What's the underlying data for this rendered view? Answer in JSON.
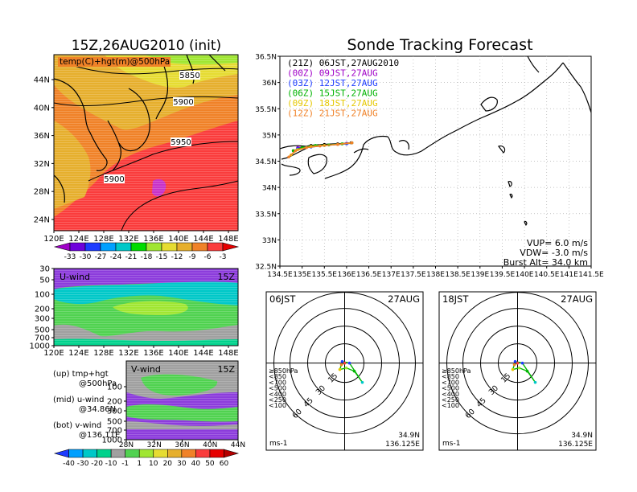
{
  "header": {
    "left_title": "15Z,26AUG2010 (init)",
    "right_title": "Sonde Tracking Forecast"
  },
  "colors": {
    "background": "#ffffff",
    "land_outline": "#000000",
    "grid": "#b0b0b0"
  },
  "chart_data": [
    {
      "type": "heatmap",
      "name_tag": "map-500hpa",
      "label": "temp(C)+hgt(m)@500hPa",
      "x_ticks": [
        "120E",
        "124E",
        "128E",
        "132E",
        "136E",
        "140E",
        "144E",
        "148E"
      ],
      "y_ticks": [
        "24N",
        "28N",
        "32N",
        "36N",
        "40N",
        "44N"
      ],
      "contour_labels": [
        "5850",
        "5900",
        "5950",
        "5900"
      ],
      "colorbar": {
        "labels": [
          "-33",
          "-30",
          "-27",
          "-24",
          "-21",
          "-18",
          "-15",
          "-12",
          "-9",
          "-6",
          "-3"
        ],
        "colors": [
          "#a000c8",
          "#6e00dc",
          "#1e3cff",
          "#00a0ff",
          "#00c8c8",
          "#00dc00",
          "#a0e632",
          "#e6dc32",
          "#e6af2d",
          "#f08228",
          "#fa3c3c",
          "#e60000"
        ]
      }
    },
    {
      "type": "heatmap",
      "name_tag": "u-wind",
      "label": "U-wind",
      "time": "15Z",
      "x_ticks": [
        "120E",
        "124E",
        "128E",
        "132E",
        "136E",
        "140E",
        "144E",
        "148E"
      ],
      "y_ticks": [
        "30",
        "50",
        "100",
        "200",
        "300",
        "500",
        "700",
        "1000"
      ]
    },
    {
      "type": "heatmap",
      "name_tag": "v-wind",
      "label": "V-wind",
      "time": "15Z",
      "x_ticks": [
        "28N",
        "32N",
        "36N",
        "40N",
        "44N"
      ],
      "y_ticks": [
        "100",
        "200",
        "300",
        "500",
        "700",
        "1000"
      ],
      "colorbar": {
        "labels": [
          "-40",
          "-30",
          "-20",
          "-10",
          "-1",
          "1",
          "10",
          "20",
          "30",
          "40",
          "50",
          "60"
        ],
        "colors": [
          "#1e3cff",
          "#00a0ff",
          "#00c8c8",
          "#00d28c",
          "#a0a0a0",
          "#50d250",
          "#a0e632",
          "#e6dc32",
          "#e6af2d",
          "#f08228",
          "#fa3c3c",
          "#e60000",
          "#b40000"
        ]
      }
    },
    {
      "type": "line",
      "name_tag": "track-map",
      "x_ticks": [
        "134.5E",
        "135E",
        "135.5E",
        "136E",
        "136.5E",
        "137E",
        "137.5E",
        "138E",
        "138.5E",
        "139E",
        "139.5E",
        "140E",
        "140.5E",
        "141E",
        "141.5E"
      ],
      "y_ticks": [
        "32.5N",
        "33N",
        "33.5N",
        "34N",
        "34.5N",
        "35N",
        "35.5N",
        "36N",
        "36.5N"
      ],
      "xlim": [
        134.5,
        141.5
      ],
      "ylim": [
        32.5,
        36.5
      ],
      "legend": [
        {
          "label": "(21Z)  06JST,27AUG2010",
          "color": "#000000"
        },
        {
          "label": "(00Z)  09JST,27AUG",
          "color": "#a000c8"
        },
        {
          "label": "(03Z)  12JST,27AUG",
          "color": "#1e3cff"
        },
        {
          "label": "(06Z)  15JST,27AUG",
          "color": "#00b400"
        },
        {
          "label": "(09Z)  18JST,27AUG",
          "color": "#e6c800"
        },
        {
          "label": "(12Z)  21JST,27AUG",
          "color": "#f08228"
        }
      ],
      "series": [
        {
          "name": "(21Z)",
          "color": "#000000",
          "x": [
            134.9,
            135.2,
            135.5,
            135.8,
            136.0,
            136.1
          ],
          "y": [
            34.75,
            34.8,
            34.82,
            34.83,
            34.84,
            34.85
          ]
        },
        {
          "name": "(00Z)",
          "color": "#a000c8",
          "x": [
            134.9,
            135.2,
            135.5,
            135.8,
            136.0,
            136.12
          ],
          "y": [
            34.76,
            34.78,
            34.8,
            34.82,
            34.84,
            34.85
          ]
        },
        {
          "name": "(03Z)",
          "color": "#1e3cff",
          "x": [
            134.9,
            135.2,
            135.5,
            135.8,
            136.0,
            136.12
          ],
          "y": [
            34.74,
            34.77,
            34.8,
            34.82,
            34.83,
            34.85
          ]
        },
        {
          "name": "(06Z)",
          "color": "#00b400",
          "x": [
            134.8,
            135.0,
            135.3,
            135.6,
            135.9,
            136.12
          ],
          "y": [
            34.7,
            34.76,
            34.8,
            34.81,
            34.83,
            34.85
          ]
        },
        {
          "name": "(09Z)",
          "color": "#e6c800",
          "x": [
            134.75,
            134.9,
            135.2,
            135.5,
            135.8,
            136.12
          ],
          "y": [
            34.62,
            34.72,
            34.78,
            34.8,
            34.82,
            34.85
          ]
        },
        {
          "name": "(12Z)",
          "color": "#f08228",
          "x": [
            134.7,
            134.85,
            135.1,
            135.4,
            135.8,
            136.12
          ],
          "y": [
            34.58,
            34.7,
            34.76,
            34.79,
            34.82,
            34.85
          ]
        }
      ],
      "info": {
        "vup": "VUP=  6.0  m/s",
        "vdw": "VDW= -3.0  m/s",
        "burst": "Burst Alt=  34.0  km"
      }
    },
    {
      "type": "scatter",
      "name_tag": "polar-06jst",
      "time": "06JST",
      "date": "27AUG",
      "ring_labels": [
        "15",
        "30",
        "45",
        "60"
      ],
      "legend": [
        {
          "label": "≥850hPa",
          "color": "#fa3c3c"
        },
        {
          "label": "<850",
          "color": "#f08228"
        },
        {
          "label": "<700",
          "color": "#e6c800"
        },
        {
          "label": "<500",
          "color": "#a0e632"
        },
        {
          "label": "<400",
          "color": "#00b400"
        },
        {
          "label": "<250",
          "color": "#00c8c8"
        },
        {
          "label": "<100",
          "color": "#1e3cff"
        }
      ],
      "unit": "ms-1",
      "lat": "34.9N",
      "lon": "136.125E"
    },
    {
      "type": "scatter",
      "name_tag": "polar-18jst",
      "time": "18JST",
      "date": "27AUG",
      "ring_labels": [
        "15",
        "30",
        "45",
        "60"
      ],
      "legend": [
        {
          "label": "≥850hPa",
          "color": "#fa3c3c"
        },
        {
          "label": "<850",
          "color": "#f08228"
        },
        {
          "label": "<700",
          "color": "#e6c800"
        },
        {
          "label": "<500",
          "color": "#a0e632"
        },
        {
          "label": "<400",
          "color": "#00b400"
        },
        {
          "label": "<250",
          "color": "#00c8c8"
        },
        {
          "label": "<100",
          "color": "#1e3cff"
        }
      ],
      "unit": "ms-1",
      "lat": "34.9N",
      "lon": "136.125E"
    }
  ],
  "panel_notes": {
    "up": "(up)  tmp+hgt",
    "up_sub": "@500hPa",
    "mid": "(mid)  u-wind",
    "mid_sub": "@34.86N",
    "bot": "(bot)  v-wind",
    "bot_sub": "@136.11E"
  }
}
